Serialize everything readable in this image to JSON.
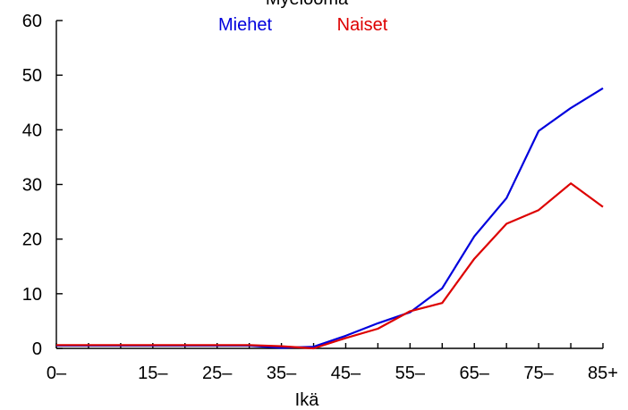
{
  "chart_data": {
    "type": "line",
    "title": "Myeloomа",
    "xlabel": "Ikä",
    "ylabel": "",
    "ylim": [
      0,
      60
    ],
    "yticks": [
      0,
      10,
      20,
      30,
      40,
      50,
      60
    ],
    "x": [
      0,
      5,
      10,
      15,
      20,
      25,
      30,
      35,
      40,
      45,
      50,
      55,
      60,
      65,
      70,
      75,
      80,
      85
    ],
    "xticks": [
      {
        "value": 0,
        "label": "0–"
      },
      {
        "value": 15,
        "label": "15–"
      },
      {
        "value": 25,
        "label": "25–"
      },
      {
        "value": 35,
        "label": "35–"
      },
      {
        "value": 45,
        "label": "45–"
      },
      {
        "value": 55,
        "label": "55–"
      },
      {
        "value": 65,
        "label": "65–"
      },
      {
        "value": 75,
        "label": "75–"
      },
      {
        "value": 85,
        "label": "85+"
      }
    ],
    "series": [
      {
        "name": "Miehet",
        "color": "#0000dd",
        "values": [
          0.5,
          0.5,
          0.5,
          0.5,
          0.5,
          0.5,
          0.5,
          0.1,
          0.3,
          2.3,
          4.6,
          6.6,
          11.0,
          20.5,
          27.5,
          39.8,
          44.0,
          47.6
        ]
      },
      {
        "name": "Naiset",
        "color": "#dd0000",
        "values": [
          0.6,
          0.6,
          0.6,
          0.6,
          0.6,
          0.6,
          0.6,
          0.4,
          0.0,
          1.9,
          3.6,
          6.8,
          8.3,
          16.4,
          22.8,
          25.3,
          30.2,
          25.9
        ]
      }
    ]
  }
}
